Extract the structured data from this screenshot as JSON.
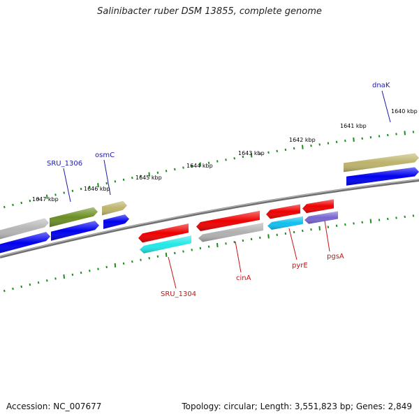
{
  "title": "Salinibacter ruber DSM 13855, complete genome",
  "footer": {
    "accession": "Accession: NC_007677",
    "summary": "Topology: circular; Length: 3,551,823 bp; Genes: 2,849"
  },
  "colors": {
    "backbone": "#808080",
    "tick": "#1e8c1e",
    "gene_label_forward": "#1a1aa8",
    "gene_label_reverse": "#cc1111",
    "scale_label": "#111111"
  },
  "scale": {
    "labels": [
      "1640 kbp",
      "1641 kbp",
      "1642 kbp",
      "1643 kbp",
      "1644 kbp",
      "1645 kbp",
      "1646 kbp",
      "1647 kbp"
    ]
  },
  "genes": {
    "forward_labels": [
      "dnaK",
      "osmC",
      "SRU_1306"
    ],
    "reverse_labels": [
      "pgsA",
      "pyrE",
      "cinA",
      "SRU_1304"
    ]
  }
}
